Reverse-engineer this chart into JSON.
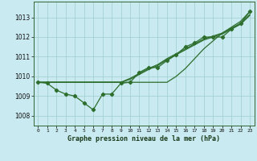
{
  "title": "Graphe pression niveau de la mer (hPa)",
  "background_color": "#c8eaf0",
  "plot_bg_color": "#c8eaf0",
  "grid_color": "#a0cccc",
  "line_color": "#2d6e2d",
  "xlim": [
    -0.5,
    23.5
  ],
  "ylim": [
    1007.5,
    1013.8
  ],
  "yticks": [
    1008,
    1009,
    1010,
    1011,
    1012,
    1013
  ],
  "xticks": [
    0,
    1,
    2,
    3,
    4,
    5,
    6,
    7,
    8,
    9,
    10,
    11,
    12,
    13,
    14,
    15,
    16,
    17,
    18,
    19,
    20,
    21,
    22,
    23
  ],
  "line_jagged": [
    1009.7,
    1009.65,
    1009.3,
    1009.1,
    1009.0,
    1008.65,
    1008.3,
    1009.1,
    1009.1,
    1009.65,
    1009.7,
    1010.2,
    1010.45,
    1010.45,
    1010.8,
    1011.1,
    1011.5,
    1011.7,
    1012.0,
    1012.0,
    1012.0,
    1012.4,
    1012.7,
    1013.3
  ],
  "line_smooth1": [
    1009.7,
    1009.7,
    1009.7,
    1009.7,
    1009.7,
    1009.7,
    1009.7,
    1009.7,
    1009.7,
    1009.7,
    1009.85,
    1010.1,
    1010.35,
    1010.55,
    1010.85,
    1011.1,
    1011.35,
    1011.6,
    1011.85,
    1012.0,
    1012.15,
    1012.4,
    1012.65,
    1013.1
  ],
  "line_smooth2": [
    1009.7,
    1009.7,
    1009.7,
    1009.7,
    1009.7,
    1009.7,
    1009.7,
    1009.7,
    1009.7,
    1009.7,
    1009.9,
    1010.15,
    1010.4,
    1010.6,
    1010.9,
    1011.15,
    1011.4,
    1011.65,
    1011.9,
    1012.05,
    1012.2,
    1012.45,
    1012.7,
    1013.15
  ],
  "line_trend": [
    1009.7,
    1009.7,
    1009.7,
    1009.7,
    1009.7,
    1009.7,
    1009.7,
    1009.7,
    1009.7,
    1009.7,
    1009.7,
    1009.7,
    1009.7,
    1009.7,
    1009.7,
    1010.0,
    1010.4,
    1010.9,
    1011.4,
    1011.8,
    1012.2,
    1012.5,
    1012.8,
    1013.3
  ]
}
